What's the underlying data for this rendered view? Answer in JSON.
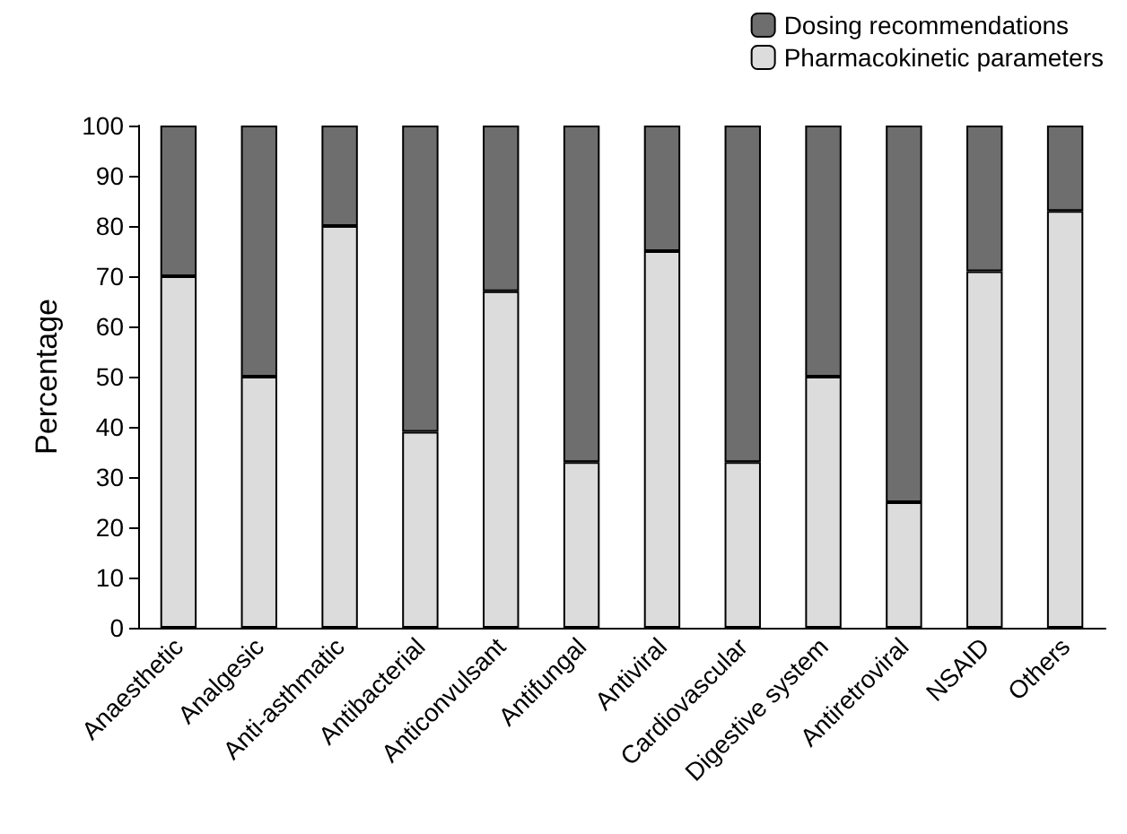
{
  "chart_data": {
    "type": "bar",
    "stacked": true,
    "ylabel": "Percentage",
    "categories": [
      "Anaesthetic",
      "Analgesic",
      "Anti-asthmatic",
      "Antibacterial",
      "Anticonvulsant",
      "Antifungal",
      "Antiviral",
      "Cardiovascular",
      "Digestive system",
      "Antiretroviral",
      "NSAID",
      "Others"
    ],
    "series": [
      {
        "name": "Pharmacokinetic parameters",
        "color": "#dcdcdc",
        "values": [
          70,
          50,
          80,
          39,
          67,
          33,
          75,
          33,
          50,
          25,
          71,
          83
        ]
      },
      {
        "name": "Dosing recommendations",
        "color": "#6e6e6e",
        "values": [
          30,
          50,
          20,
          61,
          33,
          67,
          25,
          67,
          50,
          75,
          29,
          17
        ]
      }
    ],
    "ylim": [
      0,
      100
    ],
    "yticks": [
      0,
      10,
      20,
      30,
      40,
      50,
      60,
      70,
      80,
      90,
      100
    ],
    "grid": false,
    "legend": "top right"
  }
}
